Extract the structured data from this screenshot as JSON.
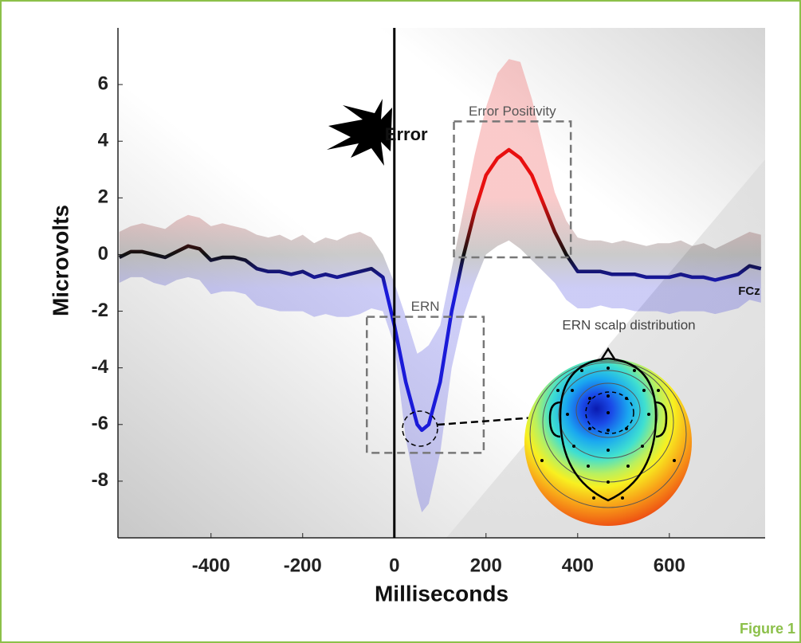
{
  "chart_data": {
    "type": "line",
    "xlabel": "Milliseconds",
    "ylabel": "Microvolts",
    "xlim": [
      -603,
      809
    ],
    "ylim": [
      -10,
      8
    ],
    "xticks": [
      -400,
      -200,
      0,
      200,
      400,
      600
    ],
    "yticks": [
      -8,
      -6,
      -4,
      -2,
      0,
      2,
      4,
      6
    ],
    "colors": {
      "positive": "#e81010",
      "zero": "#111111",
      "negative": "#1a1ad8"
    },
    "x": [
      -600,
      -575,
      -550,
      -525,
      -500,
      -475,
      -450,
      -425,
      -400,
      -375,
      -350,
      -325,
      -300,
      -275,
      -250,
      -225,
      -200,
      -175,
      -150,
      -125,
      -100,
      -75,
      -50,
      -25,
      0,
      25,
      50,
      60,
      75,
      100,
      125,
      150,
      175,
      200,
      225,
      250,
      275,
      300,
      325,
      350,
      375,
      400,
      425,
      450,
      475,
      500,
      525,
      550,
      575,
      600,
      625,
      650,
      675,
      700,
      725,
      750,
      775,
      800
    ],
    "values": [
      -0.1,
      0.1,
      0.1,
      0,
      -0.1,
      0.1,
      0.3,
      0.2,
      -0.2,
      -0.1,
      -0.1,
      -0.2,
      -0.5,
      -0.6,
      -0.6,
      -0.7,
      -0.6,
      -0.8,
      -0.7,
      -0.8,
      -0.7,
      -0.6,
      -0.5,
      -0.8,
      -2.5,
      -4.5,
      -6.0,
      -6.2,
      -6.0,
      -4.5,
      -2.0,
      -0.1,
      1.5,
      2.8,
      3.4,
      3.7,
      3.4,
      2.8,
      1.8,
      0.8,
      0.0,
      -0.6,
      -0.6,
      -0.6,
      -0.7,
      -0.7,
      -0.7,
      -0.8,
      -0.8,
      -0.8,
      -0.7,
      -0.8,
      -0.8,
      -0.9,
      -0.8,
      -0.7,
      -0.4,
      -0.5
    ],
    "band": {
      "upper": [
        0.8,
        1.0,
        1.1,
        1.0,
        0.9,
        1.2,
        1.4,
        1.3,
        1.0,
        1.1,
        1.0,
        0.9,
        0.7,
        0.6,
        0.7,
        0.5,
        0.7,
        0.4,
        0.6,
        0.5,
        0.7,
        0.8,
        0.6,
        0.0,
        -1.0,
        -2.2,
        -3.5,
        -3.4,
        -3.2,
        -2.5,
        -0.5,
        1.5,
        3.5,
        5.2,
        6.4,
        6.9,
        6.8,
        5.5,
        3.8,
        2.2,
        1.2,
        0.6,
        0.5,
        0.5,
        0.4,
        0.5,
        0.4,
        0.3,
        0.4,
        0.4,
        0.5,
        0.3,
        0.4,
        0.2,
        0.4,
        0.6,
        0.8,
        0.7
      ],
      "lower": [
        -1.0,
        -0.8,
        -0.8,
        -1.0,
        -1.1,
        -0.9,
        -0.8,
        -0.9,
        -1.4,
        -1.3,
        -1.3,
        -1.4,
        -1.8,
        -1.9,
        -2.0,
        -2.0,
        -2.0,
        -2.2,
        -2.1,
        -2.2,
        -2.2,
        -2.1,
        -1.9,
        -2.0,
        -3.2,
        -6.5,
        -8.5,
        -9.1,
        -8.8,
        -7.0,
        -4.0,
        -2.2,
        -1.0,
        0.0,
        0.3,
        0.5,
        0.2,
        -0.2,
        -0.6,
        -1.0,
        -1.6,
        -1.9,
        -1.9,
        -1.8,
        -1.9,
        -1.9,
        -2.0,
        -2.0,
        -2.0,
        -2.1,
        -2.0,
        -2.0,
        -2.0,
        -2.1,
        -2.0,
        -1.9,
        -1.6,
        -1.7
      ]
    },
    "event": {
      "label": "Error",
      "x": 0
    },
    "regions": [
      {
        "label": "Error Positivity",
        "x": [
          130,
          385
        ],
        "y": [
          -0.1,
          4.7
        ]
      },
      {
        "label": "ERN",
        "x": [
          -60,
          195
        ],
        "y": [
          -7.0,
          -2.2
        ]
      }
    ],
    "channel_label": "FCz",
    "topography_label": "ERN scalp distribution",
    "figure_label": "Figure 1"
  }
}
